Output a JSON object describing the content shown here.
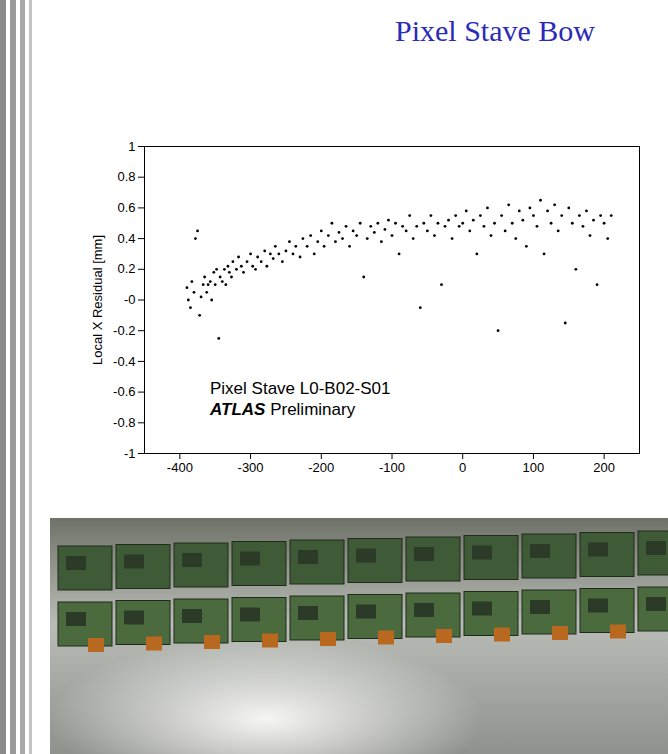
{
  "chart_data": {
    "type": "scatter",
    "title": "Pixel Stave Bow",
    "ylabel": "Local X Residual [mm]",
    "annotations": [
      "Pixel Stave L0-B02-S01",
      "ATLAS Preliminary"
    ],
    "color": "#000000",
    "marker": "dot",
    "grid": false,
    "xlim": [
      -450,
      250
    ],
    "xticks": [
      -400,
      -300,
      -200,
      -100,
      0,
      100,
      200
    ],
    "ylim": [
      -1,
      1
    ],
    "yticks": [
      -1,
      -0.8,
      -0.6,
      -0.4,
      -0.2,
      {
        "value": 0,
        "label": "-0"
      },
      0.2,
      0.4,
      0.6,
      0.8,
      1
    ],
    "x": [
      -390,
      -388,
      -385,
      -383,
      -380,
      -378,
      -375,
      -372,
      -370,
      -367,
      -365,
      -362,
      -360,
      -357,
      -355,
      -352,
      -350,
      -348,
      -345,
      -343,
      -340,
      -337,
      -335,
      -332,
      -330,
      -327,
      -325,
      -320,
      -317,
      -313,
      -310,
      -305,
      -300,
      -297,
      -293,
      -290,
      -285,
      -280,
      -277,
      -272,
      -268,
      -265,
      -260,
      -255,
      -250,
      -245,
      -240,
      -236,
      -230,
      -226,
      -220,
      -215,
      -210,
      -205,
      -200,
      -196,
      -190,
      -185,
      -180,
      -175,
      -170,
      -165,
      -160,
      -155,
      -150,
      -145,
      -140,
      -135,
      -130,
      -125,
      -120,
      -115,
      -110,
      -105,
      -100,
      -95,
      -90,
      -85,
      -80,
      -75,
      -70,
      -65,
      -60,
      -55,
      -50,
      -45,
      -40,
      -35,
      -30,
      -25,
      -20,
      -15,
      -10,
      -5,
      0,
      5,
      10,
      15,
      20,
      25,
      30,
      35,
      40,
      45,
      50,
      55,
      60,
      65,
      70,
      75,
      80,
      85,
      90,
      95,
      100,
      105,
      110,
      115,
      120,
      125,
      130,
      135,
      140,
      145,
      150,
      155,
      160,
      165,
      170,
      175,
      180,
      185,
      190,
      195,
      200,
      205,
      210
    ],
    "values": [
      0.08,
      0.0,
      -0.05,
      0.12,
      0.05,
      0.4,
      0.45,
      -0.1,
      0.02,
      0.1,
      0.15,
      0.05,
      0.1,
      0.12,
      0.0,
      0.18,
      0.1,
      0.2,
      -0.25,
      0.15,
      0.12,
      0.2,
      0.1,
      0.22,
      0.18,
      0.15,
      0.25,
      0.2,
      0.28,
      0.22,
      0.18,
      0.25,
      0.3,
      0.22,
      0.2,
      0.28,
      0.25,
      0.32,
      0.22,
      0.3,
      0.27,
      0.35,
      0.3,
      0.25,
      0.32,
      0.38,
      0.3,
      0.35,
      0.28,
      0.4,
      0.35,
      0.42,
      0.3,
      0.38,
      0.45,
      0.35,
      0.42,
      0.5,
      0.38,
      0.44,
      0.4,
      0.48,
      0.35,
      0.45,
      0.42,
      0.5,
      0.15,
      0.4,
      0.48,
      0.44,
      0.5,
      0.38,
      0.46,
      0.52,
      0.42,
      0.5,
      0.3,
      0.48,
      0.45,
      0.55,
      0.4,
      0.48,
      -0.05,
      0.5,
      0.45,
      0.55,
      0.42,
      0.5,
      0.1,
      0.48,
      0.52,
      0.4,
      0.55,
      0.48,
      0.5,
      0.58,
      0.45,
      0.52,
      0.3,
      0.55,
      0.48,
      0.6,
      0.42,
      0.5,
      -0.2,
      0.55,
      0.45,
      0.62,
      0.5,
      0.4,
      0.58,
      0.52,
      0.35,
      0.6,
      0.55,
      0.48,
      0.65,
      0.3,
      0.58,
      0.5,
      0.62,
      0.45,
      0.55,
      -0.15,
      0.6,
      0.5,
      0.2,
      0.55,
      0.48,
      0.58,
      0.42,
      0.52,
      0.1,
      0.55,
      0.5,
      0.4,
      0.55
    ]
  }
}
